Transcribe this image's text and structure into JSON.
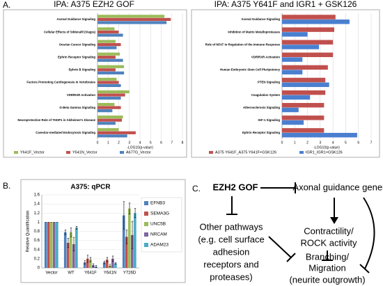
{
  "panel_labels": [
    "A.",
    "B.",
    "C."
  ],
  "chart_data": [
    {
      "type": "hbar",
      "title": "IPA: A375 EZH2 GOF",
      "x_label": "-LOG10(p-value)",
      "categories": [
        "Axonal Guidance Signaling",
        "Cellular Effects of Sildenafil (Viagra)",
        "Ovarian Cancer Signaling",
        "Ephrin Receptor Signaling",
        "Ephrin B Signaling",
        "Factors Promoting Cardiogenesis in Vertebrates",
        "VDR/RXR Activation",
        "G-Beta Gamma Signaling",
        "Neuroprotective Role of THOP1 in Alzheimer's Disease",
        "Caveolar-mediated Endocytosis Signaling"
      ],
      "series": [
        {
          "name": "Y641F_Vector",
          "color": "#9bbb59",
          "values": [
            6.3,
            1.6,
            1.7,
            2.1,
            2.5,
            1.8,
            3.0,
            1.6,
            2.4,
            2.0
          ]
        },
        {
          "name": "Y641N_Vector",
          "color": "#c0504d",
          "values": [
            6.9,
            2.0,
            2.2,
            1.7,
            1.7,
            2.0,
            2.6,
            2.2,
            2.3,
            3.6
          ]
        },
        {
          "name": "A677G_Vector",
          "color": "#4f81bd",
          "values": [
            6.5,
            2.4,
            1.8,
            2.4,
            2.5,
            2.2,
            2.2,
            1.4,
            1.7,
            2.8
          ]
        }
      ],
      "xlim": [
        0,
        8
      ],
      "xticks": [
        0,
        1,
        2,
        3,
        4,
        5,
        6,
        7,
        8
      ],
      "grid": true
    },
    {
      "type": "hbar",
      "title": "IPA: A375 Y641F and IGR1 + GSK126",
      "x_label": "-LOG10(p-value)",
      "categories": [
        "Axonal Guidance Signaling",
        "Inhibition of Matrix Metalloproteases",
        "Role of NFAT in Regulation of the Immune Response",
        "VDR/RXR Activation",
        "Human Embryonic Stem Cell Pluripotency",
        "PTEN Signaling",
        "Coagulation System",
        "Atherosclerosis Signaling",
        "IGF-1 Signaling",
        "Ephrin Receptor Signaling"
      ],
      "series": [
        {
          "name": "A375 Y641F_A375 Y641F+GSK126",
          "color": "#c0504d",
          "values": [
            4.2,
            4.1,
            4.0,
            4.0,
            3.6,
            3.4,
            3.4,
            3.3,
            3.3,
            3.3
          ]
        },
        {
          "name": "IGR1_IGR1+GSK126",
          "color": "#4a7fd0",
          "values": [
            5.3,
            2.0,
            2.9,
            1.6,
            1.6,
            3.7,
            2.2,
            1.3,
            1.7,
            5.9
          ]
        }
      ],
      "xlim": [
        0,
        7
      ],
      "xticks": [
        0,
        1,
        2,
        3,
        4,
        5,
        6,
        7
      ],
      "grid": true
    },
    {
      "type": "bar",
      "title": "A375: qPCR",
      "y_label": "Relative Quantification",
      "categories": [
        "Vector",
        "WT",
        "Y641F",
        "Y641N",
        "Y726D"
      ],
      "series": [
        {
          "name": "EFNB3",
          "color": "#4f81bd",
          "values": [
            1,
            0.78,
            0.12,
            0.12,
            1.15
          ],
          "errors": [
            0,
            0.05,
            0.04,
            0.03,
            0.3
          ]
        },
        {
          "name": "SEMA3G",
          "color": "#c0504d",
          "values": [
            1,
            0.55,
            0.2,
            0.18,
            0.68
          ],
          "errors": [
            0,
            0.1,
            0.08,
            0.05,
            0.15
          ]
        },
        {
          "name": "UNC5B",
          "color": "#9bbb59",
          "values": [
            1,
            0.78,
            0.18,
            0.05,
            1.3
          ],
          "errors": [
            0,
            0.1,
            0.05,
            0.03,
            0.12
          ]
        },
        {
          "name": "NRCAM",
          "color": "#8064a2",
          "values": [
            1,
            0.52,
            0.06,
            0.2,
            0.72
          ],
          "errors": [
            0,
            0.15,
            0.03,
            0.06,
            0.3
          ]
        },
        {
          "name": "ADAM23",
          "color": "#4bacc6",
          "values": [
            1,
            0.88,
            0.03,
            0.1,
            1.2
          ],
          "errors": [
            0,
            0.03,
            0.02,
            0.02,
            0.1
          ]
        }
      ],
      "ylim": [
        0,
        1.6
      ],
      "yticks": [
        0,
        0.2,
        0.4,
        0.6,
        0.8,
        1,
        1.2,
        1.4,
        1.6
      ],
      "grid": true
    }
  ],
  "diagram": {
    "nodes": [
      {
        "label": "EZH2 GOF"
      },
      {
        "label": "Axonal guidance genes"
      },
      {
        "lines": [
          "Other pathways",
          "(e.g. cell surface",
          "adhesion",
          "receptors and",
          "proteases)"
        ]
      },
      {
        "lines": [
          "Contractility/",
          "ROCK activity"
        ]
      },
      {
        "lines": [
          "Branching/",
          "Migration",
          "(neurite outgrowth)"
        ]
      }
    ]
  }
}
